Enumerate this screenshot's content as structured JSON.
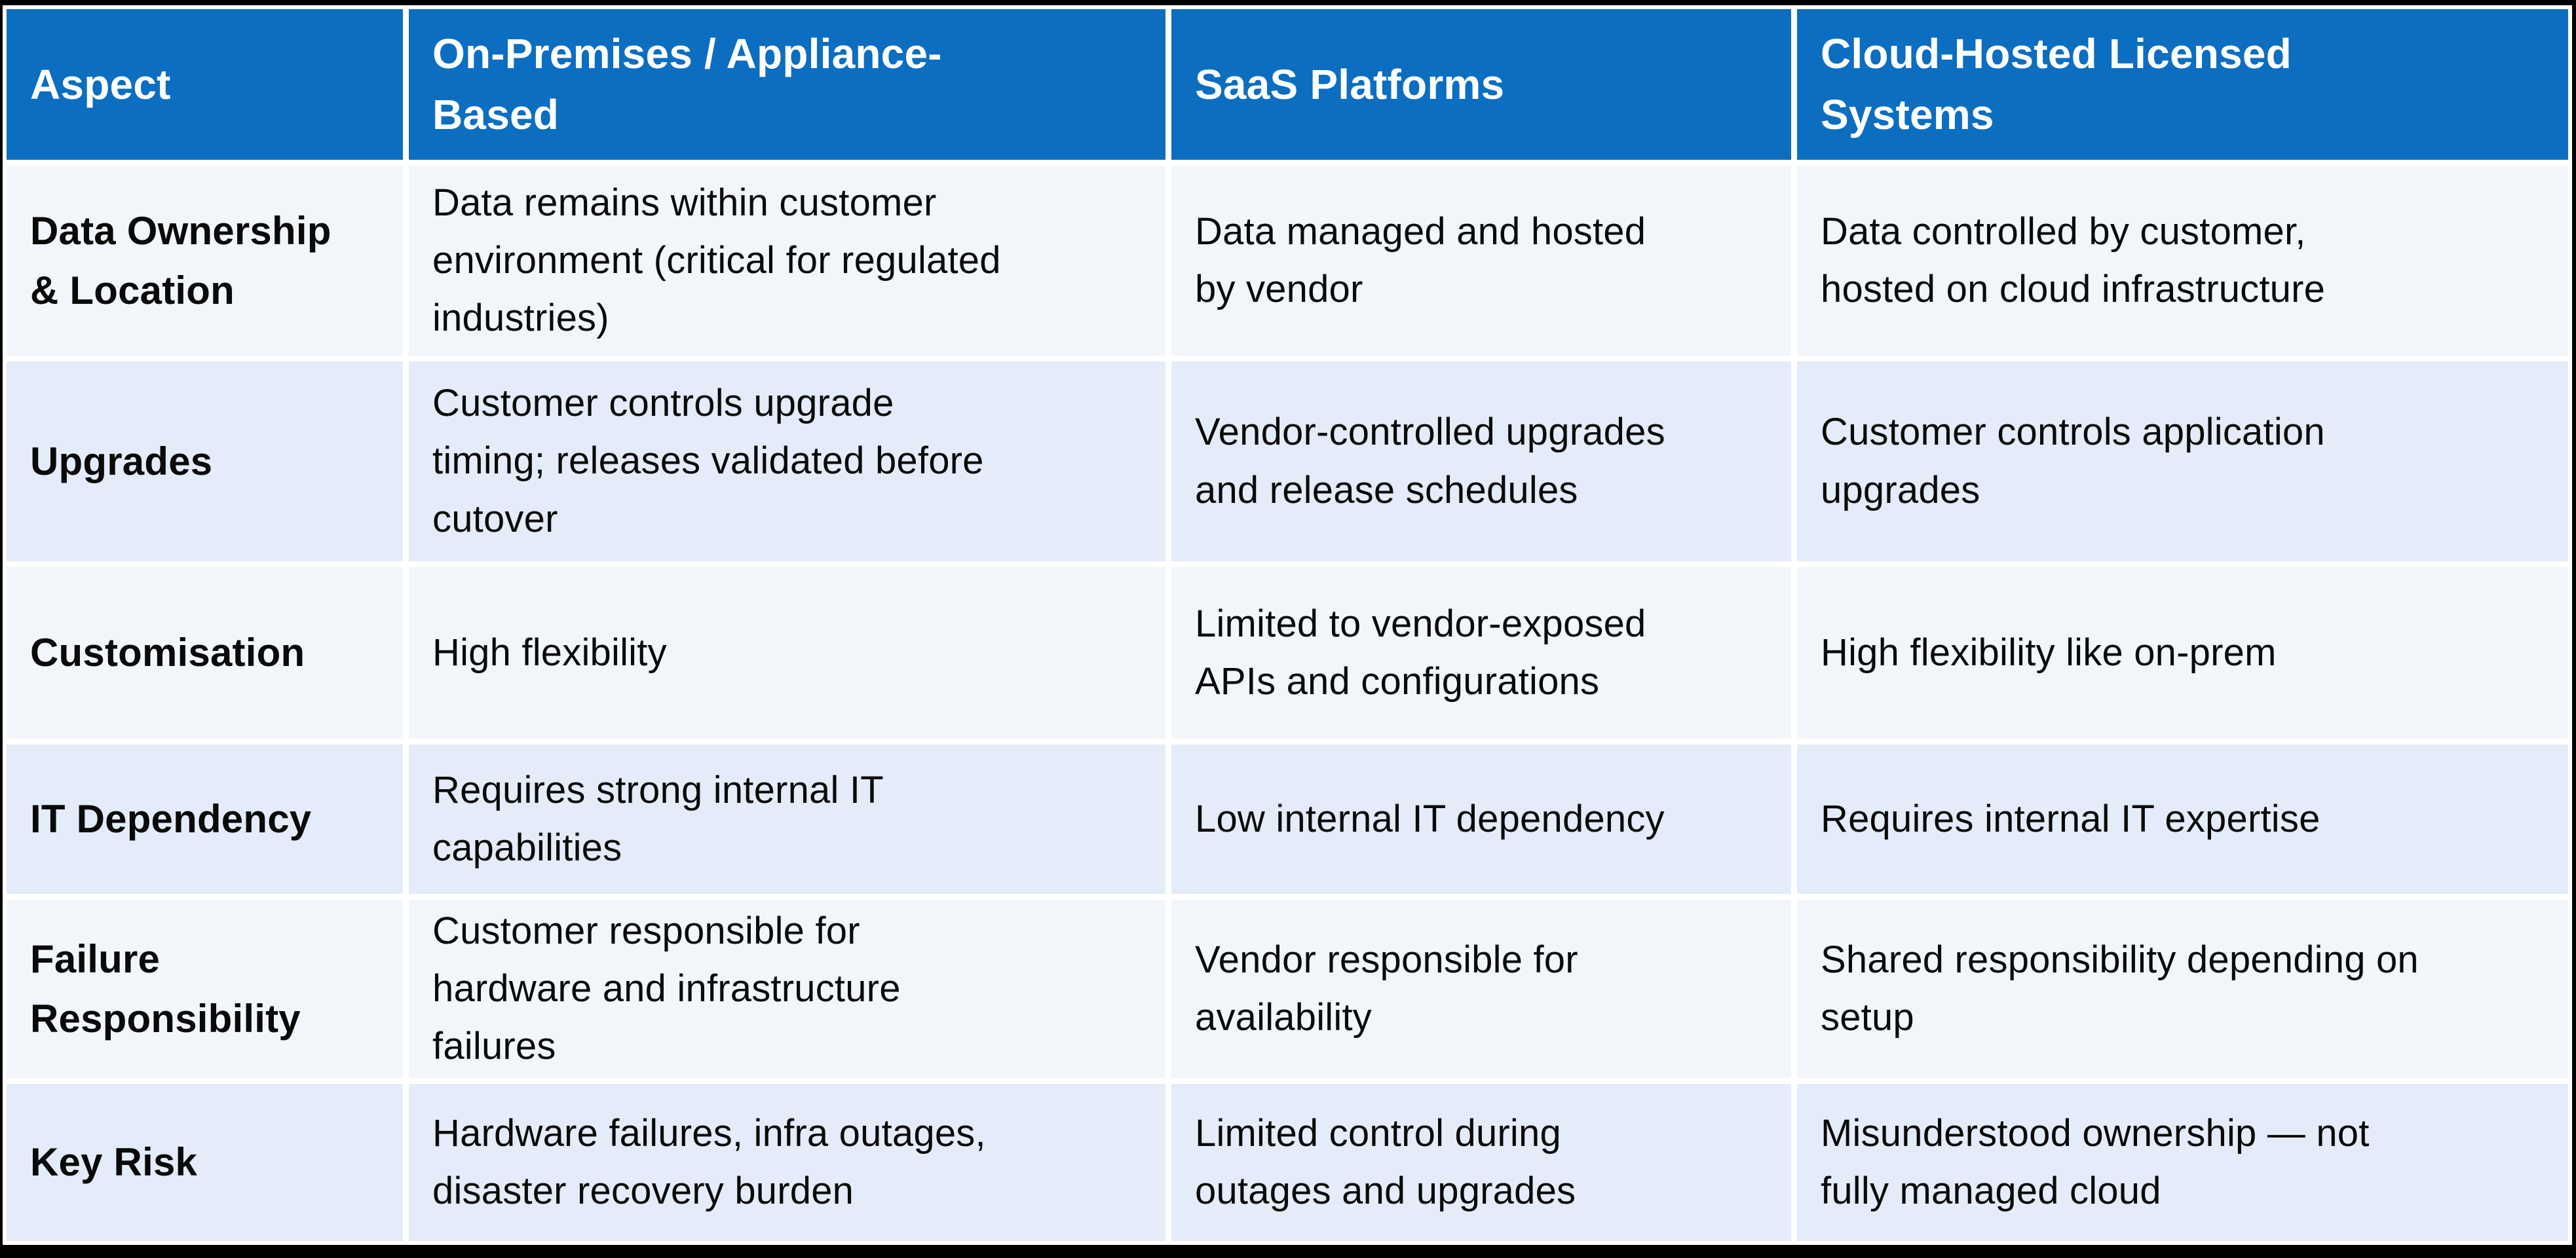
{
  "colors": {
    "header_bg": "#0c6ec0",
    "row_bg_light": "#f2f6fb",
    "row_bg_tint": "#e3ecf8",
    "frame": "#000000",
    "divider": "#ffffff",
    "header_text": "#ffffff",
    "body_text": "#0a0a0a"
  },
  "table": {
    "columns": [
      {
        "label": "Aspect"
      },
      {
        "label": "On-Premises / Appliance-\nBased"
      },
      {
        "label": "SaaS Platforms"
      },
      {
        "label": "Cloud-Hosted Licensed\nSystems"
      }
    ],
    "rows": [
      {
        "cells": [
          "Data Ownership\n& Location",
          "Data remains within customer\nenvironment (critical for regulated\nindustries)",
          "Data managed and hosted\nby vendor",
          "Data controlled by customer,\nhosted on cloud infrastructure"
        ]
      },
      {
        "cells": [
          "Upgrades",
          "Customer controls upgrade\ntiming; releases validated before\ncutover",
          "Vendor-controlled upgrades\nand release schedules",
          "Customer controls application\nupgrades"
        ]
      },
      {
        "cells": [
          "Customisation",
          "High flexibility",
          "Limited to vendor-exposed\nAPIs and configurations",
          "High flexibility like on-prem"
        ]
      },
      {
        "cells": [
          "IT Dependency",
          "Requires strong internal IT\ncapabilities",
          "Low internal IT dependency",
          "Requires internal IT expertise"
        ]
      },
      {
        "cells": [
          "Failure\nResponsibility",
          "Customer responsible for\nhardware and infrastructure\nfailures",
          "Vendor responsible for\navailability",
          "Shared responsibility depending on\nsetup"
        ]
      },
      {
        "cells": [
          "Key Risk",
          "Hardware failures, infra outages,\ndisaster recovery burden",
          "Limited control during\noutages and upgrades",
          "Misunderstood ownership — not\nfully managed cloud"
        ]
      }
    ]
  }
}
